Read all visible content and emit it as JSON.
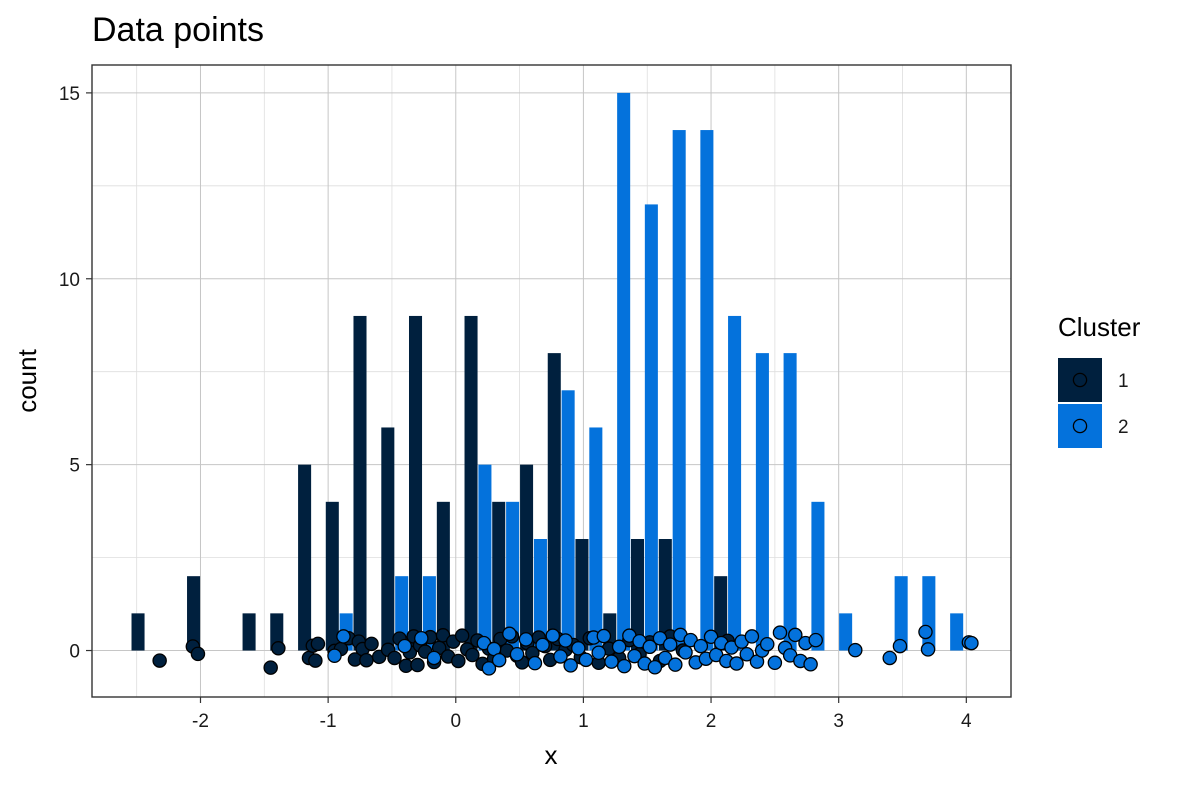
{
  "chart_data": {
    "type": "bar",
    "title": "Data points",
    "xlabel": "x",
    "ylabel": "count",
    "xlim": [
      -2.85,
      4.35
    ],
    "ylim": [
      -1.25,
      15.75
    ],
    "x_ticks": [
      -2,
      -1,
      0,
      1,
      2,
      3,
      4
    ],
    "y_ticks": [
      0,
      5,
      10,
      15
    ],
    "grid": true,
    "legend": {
      "title": "Cluster",
      "position": "right"
    },
    "bin_width": 0.2174,
    "series": [
      {
        "name": "1",
        "color": "#00203e",
        "bins": [
          {
            "x": -2.435,
            "count": 1
          },
          {
            "x": -2.0,
            "count": 2
          },
          {
            "x": -1.565,
            "count": 1
          },
          {
            "x": -1.348,
            "count": 1
          },
          {
            "x": -1.13,
            "count": 5
          },
          {
            "x": -0.913,
            "count": 4
          },
          {
            "x": -0.696,
            "count": 9
          },
          {
            "x": -0.478,
            "count": 6
          },
          {
            "x": -0.261,
            "count": 9
          },
          {
            "x": -0.043,
            "count": 4
          },
          {
            "x": 0.174,
            "count": 9
          },
          {
            "x": 0.391,
            "count": 4
          },
          {
            "x": 0.609,
            "count": 5
          },
          {
            "x": 0.826,
            "count": 8
          },
          {
            "x": 1.043,
            "count": 3
          },
          {
            "x": 1.261,
            "count": 1
          },
          {
            "x": 1.478,
            "count": 3
          },
          {
            "x": 1.696,
            "count": 3
          },
          {
            "x": 2.13,
            "count": 2
          }
        ],
        "points_x": [
          -2.32,
          -2.06,
          -2.02,
          -1.45,
          -1.39,
          -1.15,
          -1.12,
          -1.1,
          -1.08,
          -0.95,
          -0.9,
          -0.84,
          -0.79,
          -0.76,
          -0.73,
          -0.7,
          -0.66,
          -0.6,
          -0.53,
          -0.48,
          -0.44,
          -0.39,
          -0.36,
          -0.33,
          -0.3,
          -0.28,
          -0.24,
          -0.2,
          -0.17,
          -0.13,
          -0.1,
          -0.06,
          -0.02,
          0.02,
          0.05,
          0.09,
          0.13,
          0.17,
          0.21,
          0.26,
          0.3,
          0.35,
          0.4,
          0.44,
          0.48,
          0.52,
          0.56,
          0.6,
          0.65,
          0.7,
          0.74,
          0.8,
          0.86,
          0.92,
          0.98,
          1.05,
          1.12,
          1.2,
          1.28,
          1.36,
          1.44,
          1.52,
          1.6,
          1.68,
          1.78,
          2.13
        ],
        "points_y": [
          -0.27,
          0.11,
          -0.09,
          -0.46,
          0.06,
          -0.2,
          0.13,
          -0.27,
          0.18,
          -0.01,
          0.04,
          0.33,
          -0.24,
          0.24,
          0.04,
          -0.26,
          0.18,
          -0.17,
          0.02,
          -0.2,
          0.32,
          -0.41,
          -0.05,
          0.38,
          -0.39,
          0.14,
          -0.03,
          0.36,
          -0.31,
          0.07,
          0.41,
          -0.16,
          0.24,
          -0.28,
          0.4,
          0.03,
          -0.12,
          0.27,
          -0.36,
          0.05,
          -0.22,
          0.31,
          0.0,
          0.38,
          -0.14,
          -0.32,
          0.2,
          -0.07,
          0.35,
          0.12,
          -0.25,
          0.31,
          0.02,
          0.15,
          -0.18,
          0.33,
          -0.33,
          0.05,
          -0.2,
          0.28,
          -0.1,
          0.22,
          -0.28,
          0.38,
          0.0,
          0.26
        ]
      },
      {
        "name": "2",
        "color": "#0472dc",
        "bins": [
          {
            "x": -0.913,
            "count": 1
          },
          {
            "x": -0.478,
            "count": 2
          },
          {
            "x": -0.261,
            "count": 2
          },
          {
            "x": 0.174,
            "count": 5
          },
          {
            "x": 0.391,
            "count": 4
          },
          {
            "x": 0.609,
            "count": 3
          },
          {
            "x": 0.826,
            "count": 7
          },
          {
            "x": 1.043,
            "count": 6
          },
          {
            "x": 1.261,
            "count": 15
          },
          {
            "x": 1.478,
            "count": 12
          },
          {
            "x": 1.696,
            "count": 14
          },
          {
            "x": 1.913,
            "count": 14
          },
          {
            "x": 2.13,
            "count": 9
          },
          {
            "x": 2.348,
            "count": 8
          },
          {
            "x": 2.565,
            "count": 8
          },
          {
            "x": 2.783,
            "count": 4
          },
          {
            "x": 3.0,
            "count": 1
          },
          {
            "x": 3.435,
            "count": 2
          },
          {
            "x": 3.652,
            "count": 2
          },
          {
            "x": 3.87,
            "count": 1
          }
        ],
        "points_x": [
          -0.95,
          -0.88,
          -0.4,
          -0.27,
          -0.17,
          0.22,
          0.26,
          0.3,
          0.34,
          0.42,
          0.48,
          0.55,
          0.62,
          0.68,
          0.76,
          0.82,
          0.86,
          0.9,
          0.96,
          1.02,
          1.08,
          1.12,
          1.16,
          1.22,
          1.28,
          1.32,
          1.36,
          1.4,
          1.44,
          1.48,
          1.52,
          1.56,
          1.6,
          1.64,
          1.68,
          1.72,
          1.76,
          1.8,
          1.84,
          1.88,
          1.92,
          1.96,
          2.0,
          2.04,
          2.08,
          2.12,
          2.16,
          2.2,
          2.24,
          2.28,
          2.32,
          2.36,
          2.4,
          2.44,
          2.5,
          2.54,
          2.58,
          2.62,
          2.66,
          2.7,
          2.74,
          2.78,
          2.82,
          3.13,
          3.4,
          3.48,
          3.68,
          3.7,
          4.02,
          4.04
        ],
        "points_y": [
          -0.14,
          0.38,
          0.12,
          0.33,
          -0.2,
          0.2,
          -0.48,
          0.04,
          -0.26,
          0.45,
          -0.1,
          0.3,
          -0.34,
          0.15,
          0.4,
          -0.16,
          0.27,
          -0.4,
          0.06,
          -0.25,
          0.35,
          -0.06,
          0.39,
          -0.3,
          0.1,
          -0.42,
          0.4,
          -0.15,
          0.25,
          -0.35,
          0.1,
          -0.45,
          0.33,
          -0.2,
          0.16,
          -0.38,
          0.42,
          -0.05,
          0.28,
          -0.32,
          0.12,
          -0.22,
          0.37,
          -0.12,
          0.2,
          -0.28,
          0.08,
          -0.35,
          0.24,
          -0.1,
          0.38,
          -0.3,
          0.0,
          0.17,
          -0.33,
          0.48,
          0.07,
          -0.13,
          0.42,
          -0.28,
          0.2,
          -0.37,
          0.28,
          0.01,
          -0.2,
          0.12,
          0.5,
          0.03,
          0.22,
          0.2
        ]
      }
    ]
  }
}
